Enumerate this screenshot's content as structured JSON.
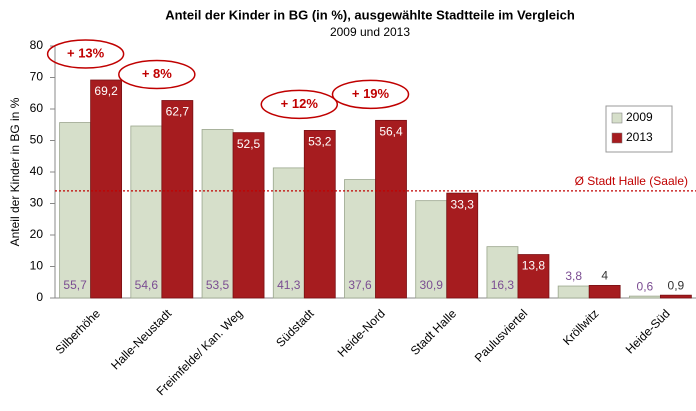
{
  "chart_data": {
    "type": "bar",
    "title": "Anteil der Kinder in BG (in %), ausgewählte Stadtteile im Vergleich",
    "subtitle": "2009 und 2013",
    "y_label": "Anteil der Kinder in BG in %",
    "categories": [
      "Silberhöhe",
      "Halle-Neustadt",
      "Freimfelde/ Kan. Weg",
      "Südstadt",
      "Heide-Nord",
      "Stadt Halle",
      "Paulusviertel",
      "Kröllwitz",
      "Heide-Süd"
    ],
    "series": [
      {
        "name": "2009",
        "color": "#d6dfca",
        "values": [
          55.7,
          54.6,
          53.5,
          41.3,
          37.6,
          30.9,
          16.3,
          3.8,
          0.6
        ],
        "value_labels": [
          "55,7",
          "54,6",
          "53,5",
          "41,3",
          "37,6",
          "30,9",
          "16,3",
          "3,8",
          "0,6"
        ]
      },
      {
        "name": "2013",
        "color": "#a61c1f",
        "values": [
          69.2,
          62.7,
          52.5,
          53.2,
          56.4,
          33.3,
          13.8,
          4,
          0.9
        ],
        "value_labels": [
          "69,2",
          "62,7",
          "52,5",
          "53,2",
          "56,4",
          "33,3",
          "13,8",
          "4",
          "0,9"
        ]
      }
    ],
    "ylim": [
      0,
      80
    ],
    "yticks": [
      0,
      10,
      20,
      30,
      40,
      50,
      60,
      70,
      80
    ],
    "grid": false,
    "legend": "right",
    "reference_line": {
      "value": 34,
      "label": "Ø Stadt Halle (Saale)",
      "color": "#c00000"
    },
    "annotations": [
      {
        "text": "+ 13%",
        "category": "Silberhöhe"
      },
      {
        "text": "+ 8%",
        "category": "Halle-Neustadt"
      },
      {
        "text": "+ 12%",
        "category": "Südstadt"
      },
      {
        "text": "+ 19%",
        "category": "Heide-Nord"
      }
    ]
  }
}
